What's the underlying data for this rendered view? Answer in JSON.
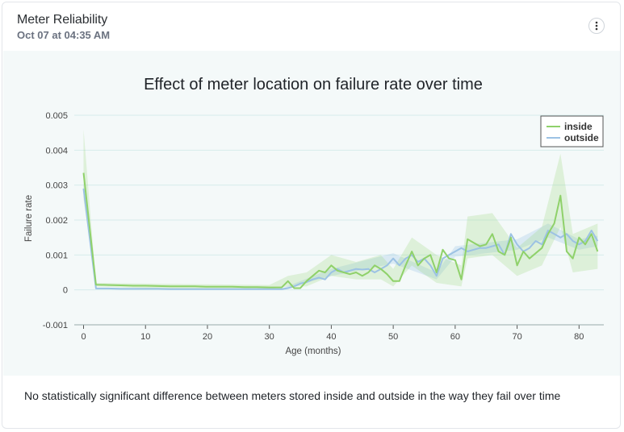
{
  "card": {
    "title": "Meter Reliability",
    "subtitle": "Oct 07 at 04:35 AM",
    "menu_icon": "more-vertical-icon",
    "caption": "No statistically significant difference between meters stored inside and outside in the way they fail over time"
  },
  "colors": {
    "inside": "#8fd16a",
    "outside": "#9cc2e4",
    "panel_bg": "#f4f9f9"
  },
  "chart_data": {
    "type": "line",
    "title": "Effect of meter location on failure rate over time",
    "xlabel": "Age (months)",
    "ylabel": "Failure rate",
    "xlim": [
      -1.5,
      84
    ],
    "ylim": [
      -0.001,
      0.005
    ],
    "xticks": [
      0,
      10,
      20,
      30,
      40,
      50,
      60,
      70,
      80
    ],
    "yticks": [
      -0.001,
      0,
      0.001,
      0.002,
      0.003,
      0.004,
      0.005
    ],
    "ytick_labels": [
      "-0.001",
      "0",
      "0.001",
      "0.002",
      "0.003",
      "0.004",
      "0.005"
    ],
    "legend": {
      "position": "top-right",
      "entries": [
        "inside",
        "outside"
      ]
    },
    "series": [
      {
        "name": "inside",
        "points": [
          [
            0,
            0.00335
          ],
          [
            2,
            0.00015
          ],
          [
            4,
            0.00014
          ],
          [
            6,
            0.00013
          ],
          [
            8,
            0.00012
          ],
          [
            10,
            0.00012
          ],
          [
            12,
            0.00011
          ],
          [
            14,
            0.0001
          ],
          [
            16,
            0.0001
          ],
          [
            18,
            0.0001
          ],
          [
            20,
            9e-05
          ],
          [
            22,
            9e-05
          ],
          [
            24,
            9e-05
          ],
          [
            26,
            8e-05
          ],
          [
            28,
            8e-05
          ],
          [
            30,
            7e-05
          ],
          [
            32,
            7e-05
          ],
          [
            33,
            0.00025
          ],
          [
            34,
            5e-05
          ],
          [
            35,
            5e-05
          ],
          [
            36,
            0.00025
          ],
          [
            37,
            0.0004
          ],
          [
            38,
            0.00055
          ],
          [
            39,
            0.0005
          ],
          [
            40,
            0.0007
          ],
          [
            41,
            0.00055
          ],
          [
            42,
            0.0005
          ],
          [
            43,
            0.00045
          ],
          [
            44,
            0.0005
          ],
          [
            45,
            0.0004
          ],
          [
            46,
            0.0005
          ],
          [
            47,
            0.0007
          ],
          [
            48,
            0.0006
          ],
          [
            49,
            0.00045
          ],
          [
            50,
            0.00025
          ],
          [
            51,
            0.00025
          ],
          [
            52,
            0.0007
          ],
          [
            53,
            0.0011
          ],
          [
            54,
            0.0007
          ],
          [
            55,
            0.0009
          ],
          [
            56,
            0.001
          ],
          [
            57,
            0.0005
          ],
          [
            58,
            0.00115
          ],
          [
            59,
            0.0009
          ],
          [
            60,
            0.00085
          ],
          [
            61,
            0.0003
          ],
          [
            62,
            0.00145
          ],
          [
            63,
            0.00135
          ],
          [
            64,
            0.00125
          ],
          [
            65,
            0.0013
          ],
          [
            66,
            0.0016
          ],
          [
            67,
            0.0011
          ],
          [
            68,
            0.001
          ],
          [
            69,
            0.0015
          ],
          [
            70,
            0.0007
          ],
          [
            71,
            0.0011
          ],
          [
            72,
            0.0009
          ],
          [
            73,
            0.00105
          ],
          [
            74,
            0.0012
          ],
          [
            75,
            0.0016
          ],
          [
            76,
            0.0019
          ],
          [
            77,
            0.0027
          ],
          [
            78,
            0.0011
          ],
          [
            79,
            0.0009
          ],
          [
            80,
            0.0015
          ],
          [
            81,
            0.0013
          ],
          [
            82,
            0.0016
          ],
          [
            83,
            0.0011
          ]
        ]
      },
      {
        "name": "outside",
        "points": [
          [
            0,
            0.0029
          ],
          [
            2,
            4e-05
          ],
          [
            4,
            4e-05
          ],
          [
            6,
            3e-05
          ],
          [
            8,
            3e-05
          ],
          [
            10,
            3e-05
          ],
          [
            12,
            3e-05
          ],
          [
            14,
            2e-05
          ],
          [
            16,
            2e-05
          ],
          [
            18,
            2e-05
          ],
          [
            20,
            2e-05
          ],
          [
            22,
            2e-05
          ],
          [
            24,
            2e-05
          ],
          [
            26,
            2e-05
          ],
          [
            28,
            2e-05
          ],
          [
            30,
            2e-05
          ],
          [
            32,
            2e-05
          ],
          [
            33,
            5e-05
          ],
          [
            34,
            0.0001
          ],
          [
            35,
            0.00018
          ],
          [
            36,
            0.00022
          ],
          [
            37,
            0.0003
          ],
          [
            38,
            0.00035
          ],
          [
            39,
            0.0003
          ],
          [
            40,
            0.0005
          ],
          [
            41,
            0.0006
          ],
          [
            42,
            0.0005
          ],
          [
            43,
            0.00055
          ],
          [
            44,
            0.0006
          ],
          [
            45,
            0.00058
          ],
          [
            46,
            0.0006
          ],
          [
            47,
            0.0005
          ],
          [
            48,
            0.0006
          ],
          [
            49,
            0.0007
          ],
          [
            50,
            0.0009
          ],
          [
            51,
            0.0007
          ],
          [
            52,
            0.0009
          ],
          [
            53,
            0.001
          ],
          [
            54,
            0.0008
          ],
          [
            55,
            0.0009
          ],
          [
            56,
            0.0007
          ],
          [
            57,
            0.0004
          ],
          [
            58,
            0.0009
          ],
          [
            59,
            0.001
          ],
          [
            60,
            0.0011
          ],
          [
            61,
            0.0012
          ],
          [
            62,
            0.0011
          ],
          [
            63,
            0.00115
          ],
          [
            64,
            0.0012
          ],
          [
            65,
            0.0012
          ],
          [
            66,
            0.00125
          ],
          [
            67,
            0.0013
          ],
          [
            68,
            0.001
          ],
          [
            69,
            0.0016
          ],
          [
            70,
            0.0013
          ],
          [
            71,
            0.0011
          ],
          [
            72,
            0.0012
          ],
          [
            73,
            0.0014
          ],
          [
            74,
            0.0013
          ],
          [
            75,
            0.0017
          ],
          [
            76,
            0.0016
          ],
          [
            77,
            0.0015
          ],
          [
            78,
            0.0016
          ],
          [
            79,
            0.0014
          ],
          [
            80,
            0.0013
          ],
          [
            81,
            0.0014
          ],
          [
            82,
            0.0017
          ],
          [
            83,
            0.0014
          ]
        ]
      }
    ],
    "confidence_band": {
      "inside": [
        [
          0,
          0.0026,
          0.0046
        ],
        [
          2,
          0.0001,
          0.0002
        ],
        [
          10,
          5e-05,
          0.00018
        ],
        [
          20,
          3e-05,
          0.00016
        ],
        [
          30,
          2e-05,
          0.00014
        ],
        [
          33,
          0.0001,
          0.0004
        ],
        [
          36,
          0.0001,
          0.0005
        ],
        [
          40,
          0.0004,
          0.001
        ],
        [
          44,
          0.0003,
          0.0008
        ],
        [
          48,
          0.0003,
          0.001
        ],
        [
          50,
          0.0001,
          0.0006
        ],
        [
          53,
          0.0007,
          0.0015
        ],
        [
          57,
          0.0002,
          0.001
        ],
        [
          61,
          0.0001,
          0.0007
        ],
        [
          62,
          0.0009,
          0.0021
        ],
        [
          66,
          0.001,
          0.0022
        ],
        [
          70,
          0.0004,
          0.0012
        ],
        [
          74,
          0.0007,
          0.0018
        ],
        [
          77,
          0.0018,
          0.0039
        ],
        [
          79,
          0.0005,
          0.0016
        ],
        [
          83,
          0.0006,
          0.0019
        ]
      ],
      "outside": [
        [
          0,
          0.0027,
          0.0031
        ],
        [
          2,
          2e-05,
          6e-05
        ],
        [
          32,
          1e-05,
          4e-05
        ],
        [
          40,
          0.0004,
          0.0006
        ],
        [
          50,
          0.00075,
          0.00105
        ],
        [
          57,
          0.0003,
          0.0005
        ],
        [
          60,
          0.00095,
          0.00125
        ],
        [
          70,
          0.00115,
          0.00145
        ],
        [
          75,
          0.0015,
          0.0019
        ],
        [
          80,
          0.00115,
          0.00145
        ],
        [
          83,
          0.00125,
          0.00155
        ]
      ]
    }
  }
}
